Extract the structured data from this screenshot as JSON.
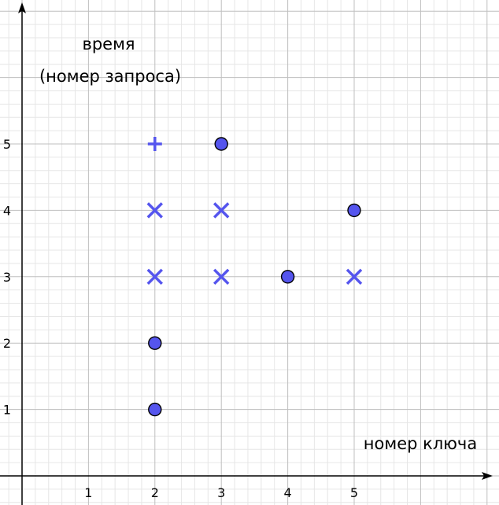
{
  "chart_data": {
    "type": "scatter",
    "title": "",
    "ylabel_lines": [
      "время",
      "(номер запроса)"
    ],
    "xlabel": "номер ключа",
    "x_ticks": [
      "1",
      "2",
      "3",
      "4",
      "5"
    ],
    "y_ticks": [
      "1",
      "2",
      "3",
      "4",
      "5"
    ],
    "grid": true,
    "colors": {
      "marker": "#5555ee",
      "marker_stroke": "#000000",
      "grid_major": "#bfbfbf",
      "grid_minor": "#e6e6e6",
      "axis": "#000000"
    },
    "point_groups": [
      {
        "marker": "circle",
        "points": [
          [
            2,
            1
          ],
          [
            2,
            2
          ],
          [
            3,
            5
          ],
          [
            4,
            3
          ],
          [
            5,
            4
          ]
        ]
      },
      {
        "marker": "x",
        "points": [
          [
            2,
            3
          ],
          [
            2,
            4
          ],
          [
            3,
            3
          ],
          [
            3,
            4
          ],
          [
            5,
            3
          ]
        ]
      },
      {
        "marker": "plus",
        "points": [
          [
            2,
            5
          ]
        ]
      }
    ]
  }
}
